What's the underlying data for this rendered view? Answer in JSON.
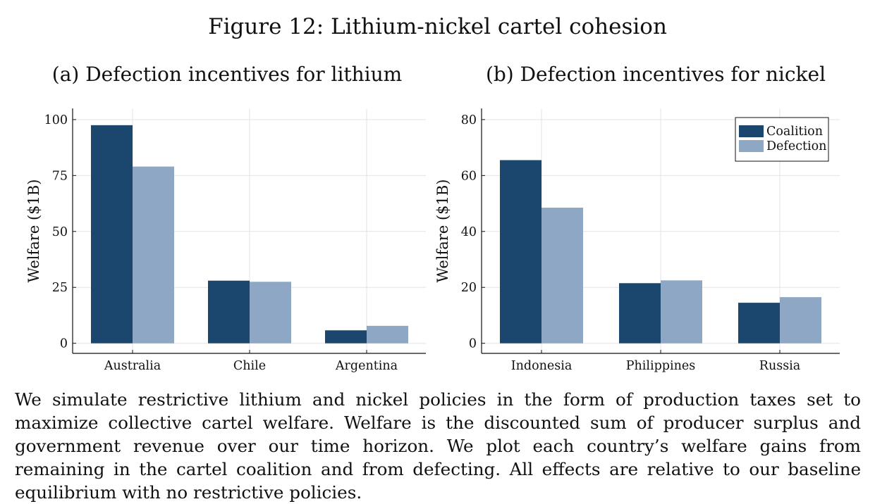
{
  "figure_title": "Figure 12: Lithium-nickel cartel cohesion",
  "colors": {
    "coalition": "#1b476e",
    "defection": "#8da7c4",
    "grid": "#e3e3e3",
    "axis": "#111111"
  },
  "chart_data": [
    {
      "type": "bar",
      "title": "(a) Defection incentives for lithium",
      "xlabel": "",
      "ylabel": "Welfare ($1B)",
      "categories": [
        "Australia",
        "Chile",
        "Argentina"
      ],
      "series": [
        {
          "name": "Coalition",
          "values": [
            97.5,
            28.0,
            5.8
          ]
        },
        {
          "name": "Defection",
          "values": [
            79.0,
            27.5,
            7.8
          ]
        }
      ],
      "ylim": [
        -4.5,
        105
      ],
      "yticks": [
        0,
        25,
        50,
        75,
        100
      ],
      "ytick_labels": [
        "0",
        "25",
        "50",
        "75",
        "100"
      ],
      "grid": true,
      "legend": "none"
    },
    {
      "type": "bar",
      "title": "(b) Defection incentives for nickel",
      "xlabel": "",
      "ylabel": "Welfare ($1B)",
      "categories": [
        "Indonesia",
        "Philippines",
        "Russia"
      ],
      "series": [
        {
          "name": "Coalition",
          "values": [
            65.5,
            21.5,
            14.5
          ]
        },
        {
          "name": "Defection",
          "values": [
            48.5,
            22.5,
            16.5
          ]
        }
      ],
      "ylim": [
        -3.6,
        84
      ],
      "yticks": [
        0,
        20,
        40,
        60,
        80
      ],
      "ytick_labels": [
        "0",
        "20",
        "40",
        "60",
        "80"
      ],
      "grid": true,
      "legend": "top-right"
    }
  ],
  "caption": "We simulate restrictive lithium and nickel policies in the form of production taxes set to maximize collective cartel welfare. Welfare is the discounted sum of producer surplus and government revenue over our time horizon. We plot each country’s welfare gains from remaining in the cartel coalition and from defecting. All effects are relative to our baseline equilibrium with no restrictive policies."
}
